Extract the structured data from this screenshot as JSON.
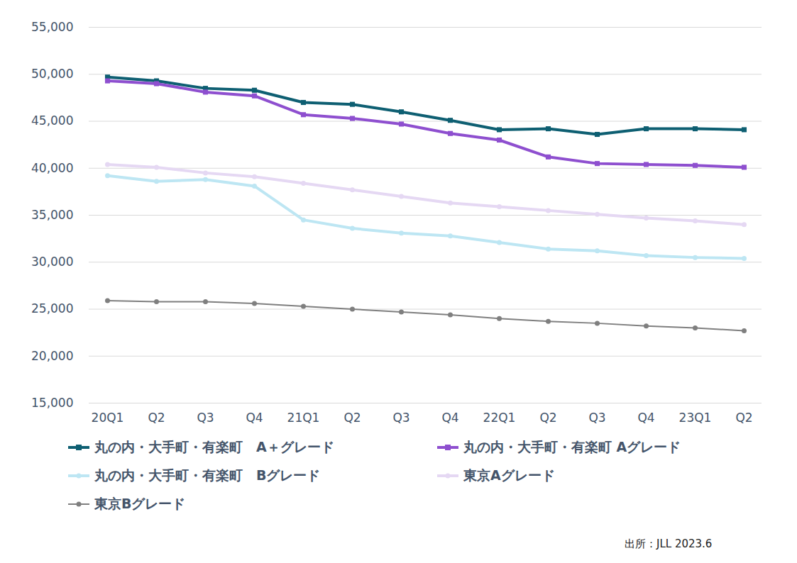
{
  "chart_data": {
    "type": "line",
    "categories": [
      "20Q1",
      "Q2",
      "Q3",
      "Q4",
      "21Q1",
      "Q2",
      "Q3",
      "Q4",
      "22Q1",
      "Q2",
      "Q3",
      "Q4",
      "23Q1",
      "Q2"
    ],
    "series": [
      {
        "name": "丸の内・大手町・有楽町　A＋グレード",
        "color": "#0e5f72",
        "marker": "square",
        "values": [
          49700,
          49300,
          48500,
          48300,
          47000,
          46800,
          46000,
          45100,
          44100,
          44200,
          43600,
          44200,
          44200,
          44100
        ]
      },
      {
        "name": "丸の内・大手町・有楽町 Aグレード",
        "color": "#8e4fcf",
        "marker": "square",
        "values": [
          49300,
          49000,
          48100,
          47700,
          45700,
          45300,
          44700,
          43700,
          43000,
          41200,
          40500,
          40400,
          40300,
          40100
        ]
      },
      {
        "name": "丸の内・大手町・有楽町　Bグレード",
        "color": "#bde6f3",
        "marker": "circle",
        "values": [
          39200,
          38600,
          38800,
          38100,
          34500,
          33600,
          33100,
          32800,
          32100,
          31400,
          31200,
          30700,
          30500,
          30400
        ]
      },
      {
        "name": "東京Aグレード",
        "color": "#e5d8f3",
        "marker": "circle",
        "values": [
          40400,
          40100,
          39500,
          39100,
          38400,
          37700,
          37000,
          36300,
          35900,
          35500,
          35100,
          34700,
          34400,
          34000
        ]
      },
      {
        "name": "東京Bグレード",
        "color": "#7f7f7f",
        "marker": "circle",
        "values": [
          25900,
          25800,
          25800,
          25600,
          25300,
          25000,
          24700,
          24400,
          24000,
          23700,
          23500,
          23200,
          23000,
          22700
        ]
      }
    ],
    "ylim": [
      15000,
      55000
    ],
    "yticks": [
      {
        "value": 15000,
        "label": "15,000"
      },
      {
        "value": 20000,
        "label": "20,000"
      },
      {
        "value": 25000,
        "label": "25,000"
      },
      {
        "value": 30000,
        "label": "30,000"
      },
      {
        "value": 35000,
        "label": "35,000"
      },
      {
        "value": 40000,
        "label": "40,000"
      },
      {
        "value": 45000,
        "label": "45,000"
      },
      {
        "value": 50000,
        "label": "50,000"
      },
      {
        "value": 55000,
        "label": "55,000"
      }
    ],
    "grid": true,
    "legend": "bottom",
    "annotations": [
      "出所：JLL 2023.6"
    ]
  }
}
